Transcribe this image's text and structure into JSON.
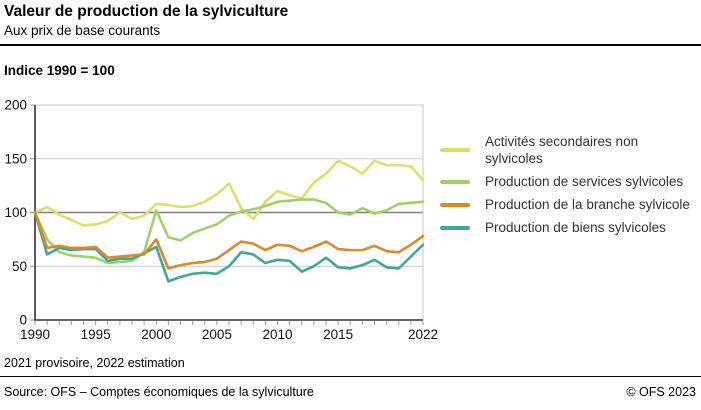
{
  "header": {
    "title": "Valeur de production de la sylviculture",
    "subtitle": "Aux prix de base courants"
  },
  "index_label": "Indice 1990 = 100",
  "footnote": "2021 provisoire, 2022 estimation",
  "footer": {
    "source": "Source: OFS – Comptes économiques de la sylviculture",
    "copyright": "© OFS 2023"
  },
  "colors": {
    "grid": "#cccccc",
    "reference_grid": "#808080",
    "axis": "#333333",
    "tick": "#999999",
    "tick_label": "#111111",
    "legend_text": "#333333"
  },
  "chart_data": {
    "type": "line",
    "title": "Valeur de production de la sylviculture",
    "subtitle": "Aux prix de base courants",
    "unit_note": "Indice 1990 = 100",
    "x": [
      1990,
      1991,
      1992,
      1993,
      1994,
      1995,
      1996,
      1997,
      1998,
      1999,
      2000,
      2001,
      2002,
      2003,
      2004,
      2005,
      2006,
      2007,
      2008,
      2009,
      2010,
      2011,
      2012,
      2013,
      2014,
      2015,
      2016,
      2017,
      2018,
      2019,
      2020,
      2021,
      2022
    ],
    "x_tick_labels": [
      1990,
      1995,
      2000,
      2005,
      2010,
      2015,
      2022
    ],
    "ylim": [
      0,
      200
    ],
    "y_ticks": [
      0,
      50,
      100,
      150,
      200
    ],
    "reference_line": 100,
    "grid": true,
    "legend_position": "right",
    "draw_order": [
      0,
      1,
      3,
      2
    ],
    "series": [
      {
        "id": "activites-secondaires-non-sylvicoles",
        "name": "Activités secondaires non sylvicoles",
        "color": "#dce06a",
        "values": [
          100,
          105,
          98,
          93,
          88,
          89,
          92,
          100,
          94,
          97,
          108,
          107,
          105,
          106,
          110,
          117,
          127,
          104,
          94,
          110,
          120,
          116,
          113,
          128,
          136,
          148,
          143,
          136,
          148,
          144,
          144,
          143,
          130
        ]
      },
      {
        "id": "production-de-services-sylvicoles",
        "name": "Production de services sylvicoles",
        "color": "#a0d166",
        "values": [
          100,
          75,
          63,
          60,
          59,
          58,
          53,
          54,
          55,
          63,
          102,
          77,
          74,
          81,
          85,
          89,
          97,
          101,
          103,
          106,
          110,
          111,
          112,
          112,
          109,
          100,
          98,
          104,
          99,
          102,
          108,
          109,
          110
        ]
      },
      {
        "id": "production-de-la-branche-sylvicole",
        "name": "Production de la branche sylvicole",
        "color": "#d98a2b",
        "values": [
          100,
          67,
          69,
          67,
          67,
          68,
          58,
          59,
          60,
          61,
          75,
          48,
          51,
          53,
          54,
          57,
          65,
          73,
          71,
          65,
          70,
          69,
          64,
          68,
          73,
          66,
          65,
          65,
          69,
          64,
          63,
          70,
          78
        ]
      },
      {
        "id": "production-de-biens-sylvicoles",
        "name": "Production de biens sylvicoles",
        "color": "#42a79a",
        "values": [
          100,
          61,
          67,
          65,
          66,
          66,
          55,
          57,
          57,
          62,
          68,
          36,
          40,
          43,
          44,
          43,
          50,
          63,
          61,
          53,
          56,
          55,
          45,
          50,
          58,
          49,
          48,
          51,
          56,
          49,
          48,
          59,
          70
        ]
      }
    ]
  }
}
